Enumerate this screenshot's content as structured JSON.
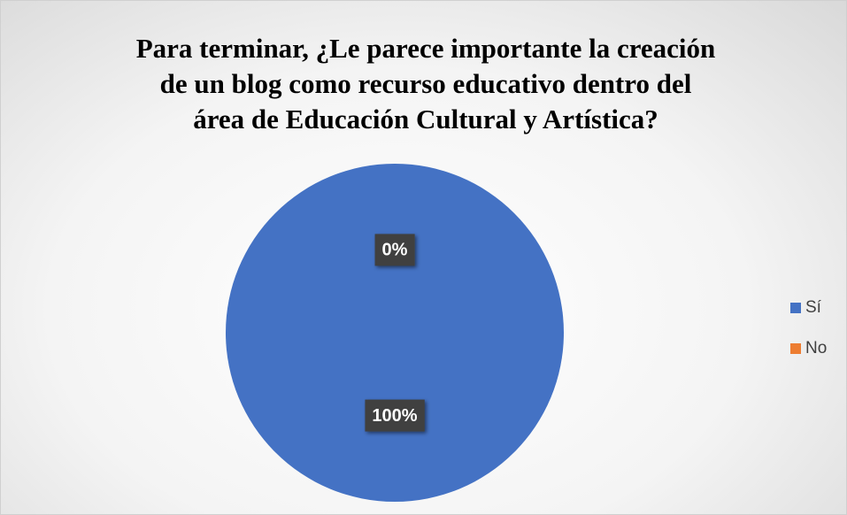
{
  "chart_data": {
    "type": "pie",
    "title": "Para terminar, ¿Le parece importante la creación de un blog como recurso educativo dentro del área de Educación Cultural y Artística?",
    "categories": [
      "Sí",
      "No"
    ],
    "values": [
      100,
      0
    ],
    "value_labels": [
      "100%",
      "0%"
    ],
    "colors": [
      "#4472c4",
      "#ed7d31"
    ],
    "legend": "right"
  }
}
